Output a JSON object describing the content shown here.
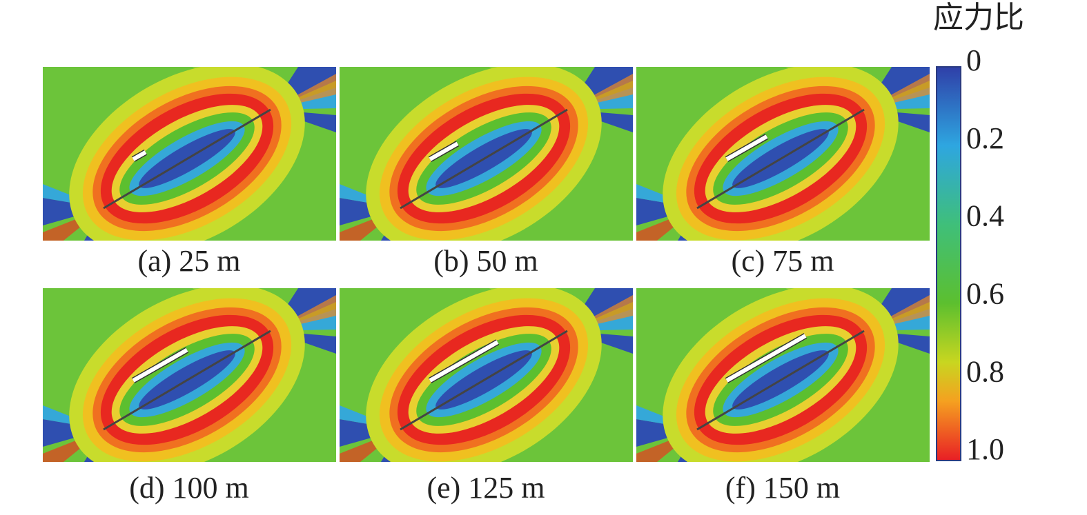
{
  "panels": [
    {
      "caption": "(a) 25 m"
    },
    {
      "caption": "(b) 50 m"
    },
    {
      "caption": "(c) 75 m"
    },
    {
      "caption": "(d) 100 m"
    },
    {
      "caption": "(e) 125 m"
    },
    {
      "caption": "(f) 150 m"
    }
  ],
  "colorbar": {
    "title": "应力比",
    "ticks": [
      0,
      0.2,
      0.4,
      0.6,
      0.8,
      {
        "value": 1,
        "label": "1.0"
      }
    ]
  }
}
